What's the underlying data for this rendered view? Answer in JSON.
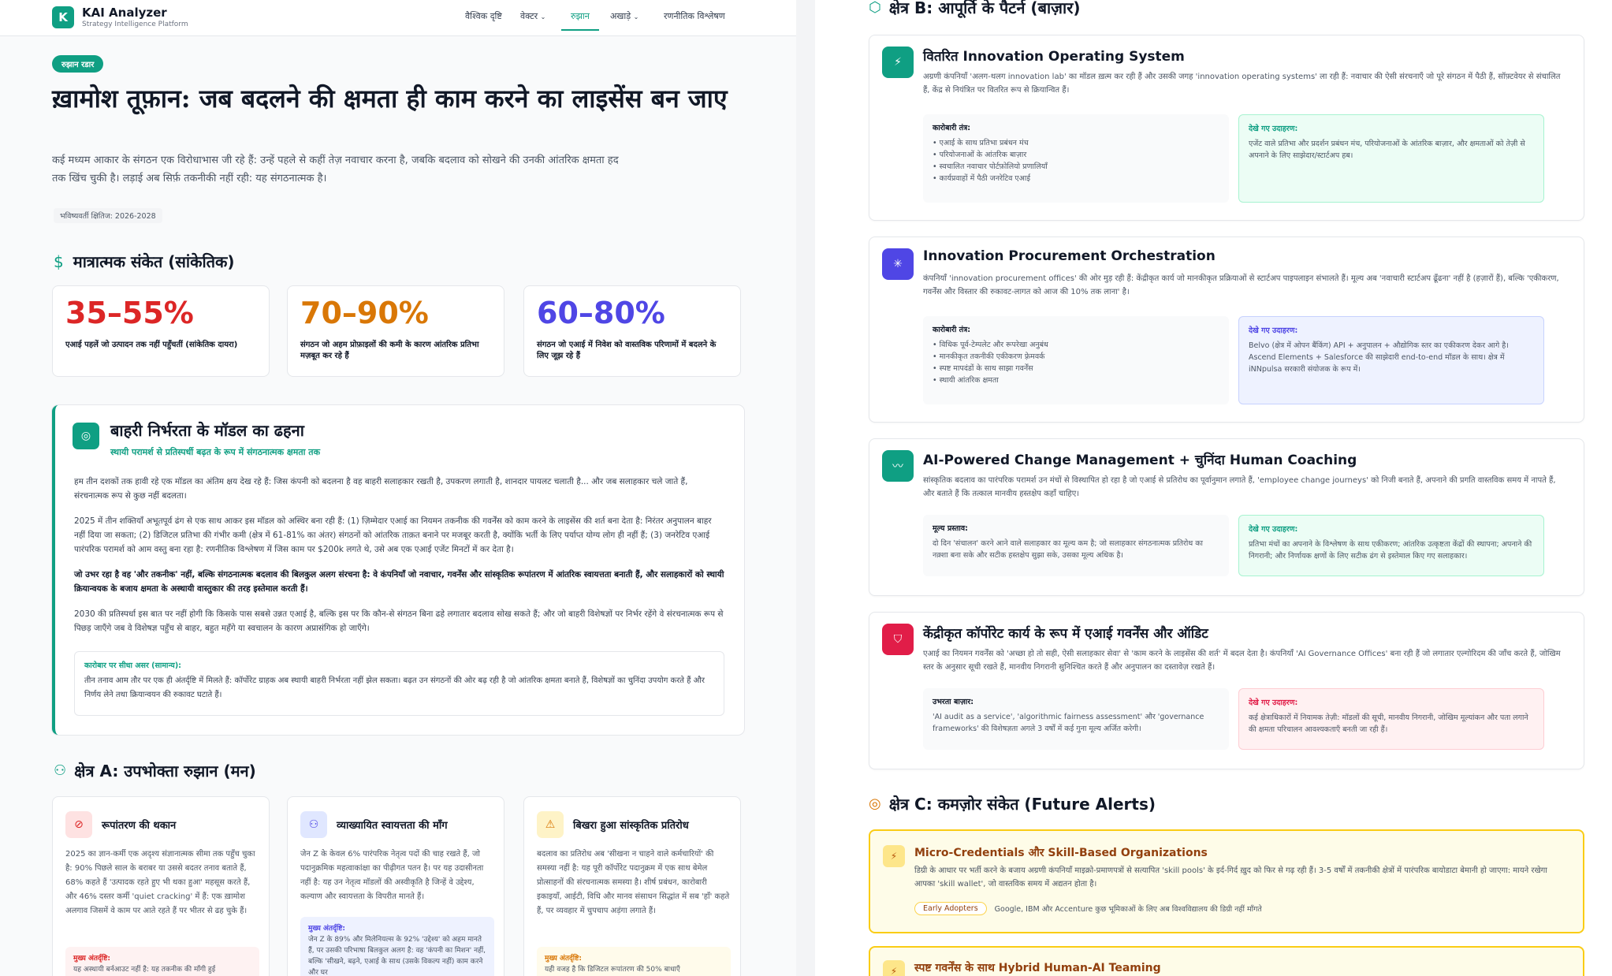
{
  "app": {
    "logo_letter": "K",
    "name": "KAI Analyzer",
    "tagline": "Strategy Intelligence Platform"
  },
  "nav": [
    {
      "label": "वैश्विक दृष्टि"
    },
    {
      "label": "वेक्टर"
    },
    {
      "label": "रुझान"
    },
    {
      "label": "अखाड़े"
    },
    {
      "label": "रणनीतिक विश्लेषण"
    }
  ],
  "hero": {
    "badge": "रुझान रडार",
    "title": "ख़ामोश तूफ़ान: जब बदलने की क्षमता ही काम करने का लाइसेंस बन जाए",
    "subtitle": "कई मध्यम आकार के संगठन एक विरोधाभास जी रहे हैं: उन्हें पहले से कहीं तेज़ नवाचार करना है, जबकि बदलाव को सोखने की उनकी आंतरिक क्षमता हद तक खिंच चुकी है। लड़ाई अब सिर्फ़ तकनीकी नहीं रही: यह संगठनात्मक है।",
    "horizon": "भविष्यवर्ती क्षितिज: 2026-2028"
  },
  "quant": {
    "title": "मात्रात्मक संकेत (सांकेतिक)",
    "stats": [
      {
        "value": "35–55%",
        "desc": "एआई पहलें जो उत्पादन तक नहीं पहुँचतीं (सांकेतिक दायरा)",
        "color": "#dc2626"
      },
      {
        "value": "70–90%",
        "desc": "संगठन जो अहम प्रोफ़ाइलों की कमी के कारण आंतरिक प्रतिभा मज़बूत कर रहे हैं",
        "color": "#d97706"
      },
      {
        "value": "60–80%",
        "desc": "संगठन जो एआई में निवेश को वास्तविक परिणामों में बदलने के लिए जूझ रहे हैं",
        "color": "#4f46e5"
      }
    ]
  },
  "external": {
    "title": "बाहरी निर्भरता के मॉडल का ढहना",
    "subtitle": "स्थायी परामर्श से प्रतिस्पर्धी बढ़त के रूप में संगठनात्मक क्षमता तक",
    "p1": "हम तीन दशकों तक हावी रहे एक मॉडल का अंतिम क्षय देख रहे हैं: जिस कंपनी को बदलना है वह बाहरी सलाहकार रखती है, उपकरण लगाती है, शानदार पायलट चलाती है... और जब सलाहकार चले जाते हैं, संरचनात्मक रूप से कुछ नहीं बदलता।",
    "p2": "2025 में तीन शक्तियाँ अभूतपूर्व ढंग से एक साथ आकर इस मॉडल को अस्थिर बना रही हैं: (1) ज़िम्मेदार एआई का नियमन तकनीक की गवर्नेंस को काम करने के लाइसेंस की शर्त बना देता है: निरंतर अनुपालन बाहर नहीं दिया जा सकता; (2) डिजिटल प्रतिभा की गंभीर कमी (क्षेत्र में 61-81% का अंतर) संगठनों को आंतरिक ताक़त बनाने पर मजबूर करती है, क्योंकि भर्ती के लिए पर्याप्त योग्य लोग ही नहीं हैं; (3) जनरेटिव एआई पारंपरिक परामर्श को आम वस्तु बना रहा है: रणनीतिक विश्लेषण में जिस काम पर $200k लगते थे, उसे अब एक एआई एजेंट मिनटों में कर देता है।",
    "p3": "जो उभर रहा है वह 'और तकनीक' नहीं, बल्कि संगठनात्मक बदलाव की बिलकुल अलग संरचना है: वे कंपनियाँ जो नवाचार, गवर्नेंस और सांस्कृतिक रूपांतरण में आंतरिक स्वायत्तता बनाती हैं, और सलाहकारों को स्थायी क्रियान्वयक के बजाय क्षमता के अस्थायी वास्तुकार की तरह इस्तेमाल करती हैं।",
    "p4": "2030 की प्रतिस्पर्धा इस बात पर नहीं होगी कि किसके पास सबसे उन्नत एआई है, बल्कि इस पर कि कौन-से संगठन बिना ढहे लगातार बदलाव सोख सकते हैं; और जो बाहरी विशेषज्ञों पर निर्भर रहेंगे वे संरचनात्मक रूप से पिछड़ जाएँगे जब वे विशेषज्ञ पहुँच से बाहर, बहुत महँगे या स्वचालन के कारण अप्रासंगिक हो जाएँगे।",
    "impact_title": "कारोबार पर सीधा असर (सामान्य):",
    "impact_text": "तीन तनाव आम तौर पर एक ही अंतर्दृष्टि में मिलते हैं: कॉर्पोरेट ग्राहक अब स्थायी बाहरी निर्भरता नहीं झेल सकता। बढ़त उन संगठनों की ओर बढ़ रही है जो आंतरिक क्षमता बनाते हैं, विशेषज्ञों का चुनिंदा उपयोग करते हैं और निर्णय लेने तथा क्रियान्वयन की रुकावट घटाते हैं।"
  },
  "zoneA": {
    "title": "क्षेत्र A: उपभोक्ता रुझान (मन)",
    "cards": [
      {
        "title": "रूपांतरण की थकान",
        "text": "2025 का ज्ञान-कर्मी एक अदृश्य संज्ञानात्मक सीमा तक पहुँच चुका है: 90% पिछले साल के बराबर या उससे बदतर तनाव बताते हैं, 68% कहते हैं 'उत्पादक रहते हुए भी थका हुआ' महसूस करते हैं, और 46% दस्तर कर्मी 'quiet cracking' में हैं: एक ख़ामोश अलगाव जिसमें वे काम पर आते रहते हैं पर भीतर से ढह चुके हैं।",
        "insight_label": "मुख्य अंतर्दृष्टि:",
        "insight": "यह अस्थायी बर्नआउट नहीं है: यह तकनीक की माँगी हुई"
      },
      {
        "title": "व्याख्यायित स्वायत्तता की माँग",
        "text": "जेन Z के केवल 6% पारंपरिक नेतृत्व पदों की चाह रखते हैं, जो पदानुक्रमिक महत्वाकांक्षा का पीढ़ीगत पतन है। पर यह उदासीनता नहीं है: यह उन नेतृत्व मॉडलों की अस्वीकृति है जिन्हें वे उद्देश्य, कल्याण और स्वायत्तता के विपरीत मानते हैं।",
        "insight_label": "मुख्य अंतर्दृष्टि:",
        "insight": "जेन Z के 89% और मिलेनियल्स के 92% 'उद्देश्य' को अहम मानते हैं, पर उसकी परिभाषा बिलकुल अलग है: वह 'कंपनी का मिशन' नहीं, बल्कि 'सीखने, बढ़ने, एआई के साथ (उसके विकल्प नहीं) काम करने और घर"
      },
      {
        "title": "बिखरा हुआ सांस्कृतिक प्रतिरोध",
        "text": "बदलाव का प्रतिरोध अब 'सीखना न चाहने वाले कर्मचारियों' की समस्या नहीं है: यह पूरी कॉर्पोरेट पदानुक्रम में एक साथ बेमेल प्रोत्साहनों की संरचनात्मक समस्या है। शीर्ष प्रबंधन, कारोबारी इकाइयाँ, आईटी, विधि और मानव संसाधन सिद्धांत में सब 'हाँ' कहते हैं, पर व्यवहार में चुपचाप अड़ंगा लगाते हैं।",
        "insight_label": "मुख्य अंतर्दृष्टि:",
        "insight": "यही वजह है कि डिजिटल रूपांतरण की 50% बाधाएँ"
      }
    ]
  },
  "zoneB": {
    "title": "क्षेत्र B: आपूर्ति के पैटर्न (बाज़ार)",
    "cards": [
      {
        "title": "वितरित Innovation Operating System",
        "text": "अग्रणी कंपनियाँ 'अलग-थलग innovation lab' का मॉडल ख़त्म कर रही हैं और उसकी जगह 'innovation operating systems' ला रही हैं: नवाचार की ऐसी संरचनाएँ जो पूरे संगठन में पैठी हैं, सॉफ़्टवेयर से संचालित हैं, केंद्र से नियंत्रित पर वितरित रूप से क्रियान्वित हैं।",
        "left_label": "कारोबारी तंत्र:",
        "left_items": [
          "एआई के साथ प्रतिभा प्रबंधन मंच",
          "परियोजनाओं के आंतरिक बाज़ार",
          "स्वचालित नवाचार पोर्टफ़ोलियो प्रणालियाँ",
          "कार्यप्रवाहों में पैठी जनरेटिव एआई"
        ],
        "right_label": "देखे गए उदाहरण:",
        "right_text": "एजेंट वाले प्रतिभा और प्रदर्शन प्रबंधन मंच, परियोजनाओं के आंतरिक बाज़ार, और क्षमताओं को तेज़ी से अपनाने के लिए साझेदार/स्टार्टअप हब।"
      },
      {
        "title": "Innovation Procurement Orchestration",
        "text": "कंपनियाँ 'innovation procurement offices' की ओर मुड़ रही हैं: केंद्रीकृत कार्य जो मानकीकृत प्रक्रियाओं से स्टार्टअप पाइपलाइन संभालते हैं। मूल्य अब 'नवाचारी स्टार्टअप ढूँढना' नहीं है (हज़ारों हैं), बल्कि 'एकीकरण, गवर्नेंस और विस्तार की रुकावट-लागत को आज की 10% तक लाना' है।",
        "left_label": "कारोबारी तंत्र:",
        "left_items": [
          "विधिक पूर्व-टेम्पलेट और रूपरेखा अनुबंध",
          "मानकीकृत तकनीकी एकीकरण फ़्रेमवर्क",
          "स्पष्ट मापदंडों के साथ साझा गवर्नेंस",
          "स्थायी आंतरिक क्षमता"
        ],
        "right_label": "देखे गए उदाहरण:",
        "right_text": "Belvo (क्षेत्र में ओपन बैंकिंग) API + अनुपालन + औद्योगिक स्तर का एकीकरण देकर आगे है। Ascend Elements + Salesforce की साझेदारी end-to-end मॉडल के साथ। क्षेत्र में iNNpulsa सरकारी संयोजक के रूप में।"
      },
      {
        "title": "AI-Powered Change Management + चुनिंदा Human Coaching",
        "text": "सांस्कृतिक बदलाव का पारंपरिक परामर्श उन मंचों से विस्थापित हो रहा है जो एआई से प्रतिरोध का पूर्वानुमान लगाते हैं, 'employee change journeys' को निजी बनाते हैं, अपनाने की प्रगति वास्तविक समय में नापते हैं, और बताते हैं कि तत्काल मानवीय हस्तक्षेप कहाँ चाहिए।",
        "left_label": "मूल्य प्रस्ताव:",
        "left_text": "दो दिन 'संचालन' करने आने वाले सलाहकार का मूल्य कम है; जो सलाहकार संगठनात्मक प्रतिरोध का नक़्शा बना सके और सटीक हस्तक्षेप सुझा सके, उसका मूल्य अधिक है।",
        "right_label": "देखे गए उदाहरण:",
        "right_text": "प्रतिभा मंचों का अपनाने के विश्लेषण के साथ एकीकरण; आंतरिक उत्कृष्टता केंद्रों की स्थापना; अपनाने की निगरानी; और निर्णायक क्षणों के लिए सटीक ढंग से इस्तेमाल किए गए सलाहकार।"
      },
      {
        "title": "केंद्रीकृत कॉर्पोरेट कार्य के रूप में एआई गवर्नेंस और ऑडिट",
        "text": "एआई का नियमन गवर्नेंस को 'अच्छा हो तो सही, ऐसी सलाहकार सेवा' से 'काम करने के लाइसेंस की शर्त' में बदल देता है। कंपनियाँ 'AI Governance Offices' बना रही हैं जो लगातार एल्गोरिदम की जाँच करते हैं, जोखिम स्तर के अनुसार सूची रखते हैं, मानवीय निगरानी सुनिश्चित करते हैं और अनुपालन का दस्तावेज़ रखते हैं।",
        "left_label": "उभरता बाज़ार:",
        "left_text": "'AI audit as a service', 'algorithmic fairness assessment' और 'governance frameworks' की विशेषज्ञता अगले 3 वर्षों में कई गुना मूल्य अर्जित करेगी।",
        "right_label": "देखे गए उदाहरण:",
        "right_text": "कई क्षेत्राधिकारों में नियामक तेज़ी: मॉडलों की सूची, मानवीय निगरानी, जोखिम मूल्यांकन और पता लगाने की क्षमता परिचालन आवश्यकताएँ बनती जा रही हैं।"
      }
    ]
  },
  "zoneC": {
    "title": "क्षेत्र C: कमज़ोर संकेत (Future Alerts)",
    "alerts": [
      {
        "title": "Micro-Credentials और Skill-Based Organizations",
        "text": "डिग्री के आधार पर भर्ती करने के बजाय अग्रणी कंपनियाँ माइक्रो-प्रमाणपत्रों से सत्यापित 'skill pools' के इर्द-गिर्द ख़ुद को फिर से गढ़ रही हैं। 3-5 वर्षों में तकनीकी क्षेत्रों में पारंपरिक बायोडाटा बेमानी हो जाएगा: मायने रखेगा आपका 'skill wallet', जो वास्तविक समय में अद्यतन होता है।",
        "chip": "Early Adopters",
        "note": "Google, IBM और Accenture कुछ भूमिकाओं के लिए अब विश्वविद्यालय की डिग्री नहीं माँगते"
      },
      {
        "title": "स्पष्ट गवर्नेंस के साथ Hybrid Human-AI Teaming"
      }
    ]
  },
  "colors": {
    "accent": "#0f9f83",
    "stat_red": "#dc2626",
    "stat_orange": "#d97706",
    "stat_indigo": "#4f46e5"
  }
}
